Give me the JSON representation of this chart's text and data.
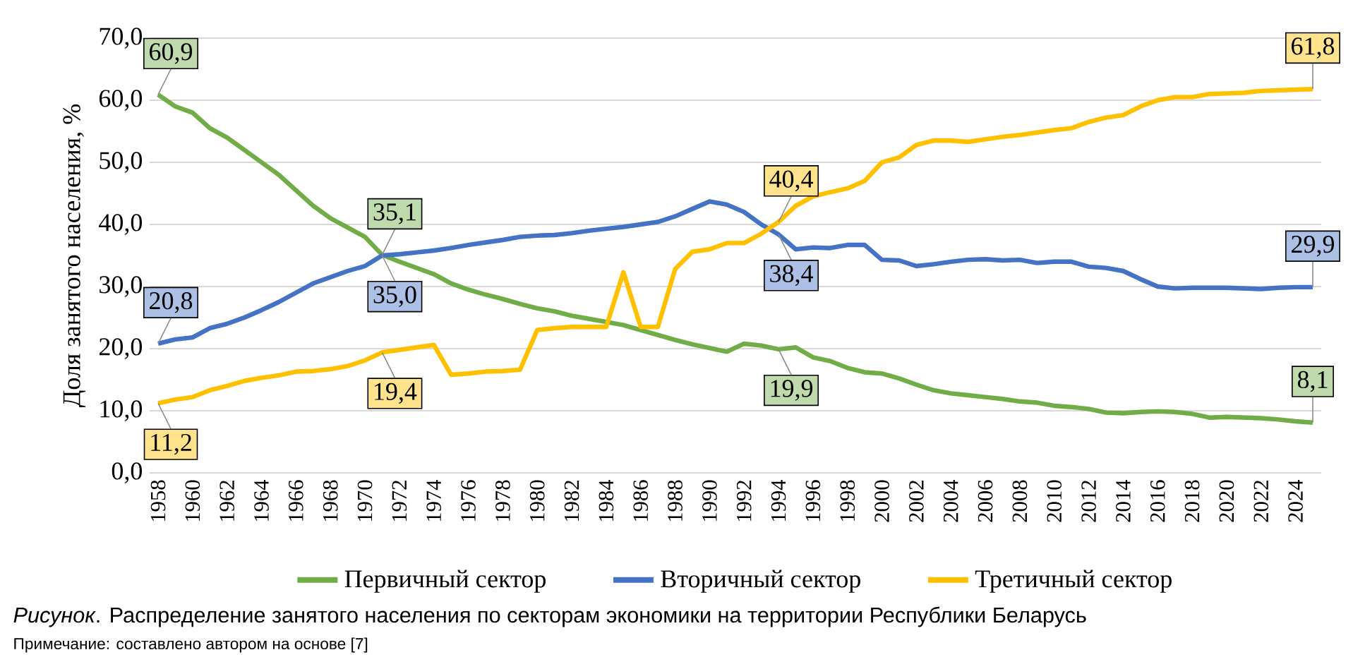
{
  "chart_data": {
    "type": "line",
    "ylabel": "Доля занятого населения, %",
    "categories": [
      "1958",
      null,
      "1960",
      null,
      "1962",
      null,
      "1964",
      null,
      "1966",
      null,
      "1968",
      null,
      "1970",
      null,
      "1972",
      null,
      "1974",
      null,
      "1976",
      null,
      "1978",
      null,
      "1980",
      null,
      "1982",
      null,
      "1984",
      null,
      "1986",
      null,
      "1988",
      null,
      "1990",
      null,
      "1992",
      null,
      "1994",
      null,
      "1996",
      null,
      "1998",
      null,
      "2000",
      null,
      "2002",
      null,
      "2004",
      null,
      "2006",
      null,
      "2008",
      null,
      "2010",
      null,
      "2012",
      null,
      "2014",
      null,
      "2016",
      null,
      "2018",
      null,
      "2020",
      null,
      "2022",
      null,
      "2024",
      null
    ],
    "series": [
      {
        "name": "Первичный сектор",
        "color": "#70ad47",
        "values": [
          60.9,
          59,
          58,
          55.5,
          54,
          52,
          50,
          48,
          45.5,
          43,
          41,
          39.5,
          38,
          35.1,
          34,
          33,
          32,
          30.5,
          29.5,
          28.7,
          28,
          27.2,
          26.5,
          26,
          25.3,
          24.8,
          24.3,
          23.8,
          23,
          22.2,
          21.4,
          20.7,
          20.1,
          19.5,
          20.8,
          20.5,
          19.9,
          20.2,
          18.6,
          18,
          16.9,
          16.2,
          16,
          15.2,
          14.2,
          13.3,
          12.8,
          12.5,
          12.2,
          11.9,
          11.5,
          11.3,
          10.8,
          10.6,
          10.3,
          9.7,
          9.6,
          9.8,
          9.9,
          9.8,
          9.5,
          8.9,
          9,
          8.9,
          8.8,
          8.6,
          8.3,
          8.1
        ],
        "value_labels": [
          "60,9",
          null,
          null,
          null,
          null,
          null,
          null,
          null,
          null,
          null,
          null,
          null,
          null,
          "35,1",
          null,
          null,
          null,
          null,
          null,
          null,
          null,
          null,
          null,
          null,
          null,
          null,
          null,
          null,
          null,
          null,
          null,
          null,
          null,
          null,
          null,
          null,
          "19,9",
          null,
          null,
          null,
          null,
          null,
          null,
          null,
          null,
          null,
          null,
          null,
          null,
          null,
          null,
          null,
          null,
          null,
          null,
          null,
          null,
          null,
          null,
          null,
          null,
          null,
          null,
          null,
          null,
          null,
          null,
          "8,1"
        ]
      },
      {
        "name": "Вторичный сектор",
        "color": "#4472c4",
        "values": [
          20.8,
          21.5,
          21.8,
          23.3,
          24,
          25,
          26.2,
          27.5,
          29,
          30.5,
          31.5,
          32.5,
          33.3,
          35.0,
          35.2,
          35.5,
          35.8,
          36.2,
          36.7,
          37.1,
          37.5,
          38,
          38.2,
          38.3,
          38.6,
          39,
          39.3,
          39.6,
          40,
          40.4,
          41.3,
          42.5,
          43.7,
          43.2,
          42,
          40,
          38.4,
          36,
          36.3,
          36.2,
          36.7,
          36.7,
          34.3,
          34.2,
          33.3,
          33.6,
          34,
          34.3,
          34.4,
          34.2,
          34.3,
          33.8,
          34,
          34,
          33.2,
          33,
          32.5,
          31.2,
          30,
          29.7,
          29.8,
          29.8,
          29.8,
          29.7,
          29.6,
          29.8,
          29.9,
          29.9
        ],
        "value_labels": [
          "20,8",
          null,
          null,
          null,
          null,
          null,
          null,
          null,
          null,
          null,
          null,
          null,
          null,
          "35,0",
          null,
          null,
          null,
          null,
          null,
          null,
          null,
          null,
          null,
          null,
          null,
          null,
          null,
          null,
          null,
          null,
          null,
          null,
          null,
          null,
          null,
          null,
          "38,4",
          null,
          null,
          null,
          null,
          null,
          null,
          null,
          null,
          null,
          null,
          null,
          null,
          null,
          null,
          null,
          null,
          null,
          null,
          null,
          null,
          null,
          null,
          null,
          null,
          null,
          null,
          null,
          null,
          null,
          null,
          "29,9"
        ]
      },
      {
        "name": "Третичный сектор",
        "color": "#ffc000",
        "values": [
          11.2,
          11.8,
          12.2,
          13.3,
          14,
          14.8,
          15.3,
          15.7,
          16.3,
          16.4,
          16.7,
          17.2,
          18.1,
          19.4,
          19.8,
          20.2,
          20.6,
          15.8,
          16,
          16.3,
          16.4,
          16.6,
          23,
          23.3,
          23.5,
          23.5,
          23.5,
          32.3,
          23.5,
          23.5,
          32.8,
          35.6,
          36,
          37,
          37,
          38.5,
          40.4,
          43,
          44.5,
          45.2,
          45.8,
          47,
          50,
          50.8,
          52.8,
          53.5,
          53.5,
          53.3,
          53.7,
          54.1,
          54.4,
          54.8,
          55.2,
          55.5,
          56.5,
          57.2,
          57.6,
          59,
          60,
          60.5,
          60.5,
          61,
          61.1,
          61.2,
          61.5,
          61.6,
          61.7,
          61.8
        ],
        "value_labels": [
          "11,2",
          null,
          null,
          null,
          null,
          null,
          null,
          null,
          null,
          null,
          null,
          null,
          null,
          "19,4",
          null,
          null,
          null,
          null,
          null,
          null,
          null,
          null,
          null,
          null,
          null,
          null,
          null,
          null,
          null,
          null,
          null,
          null,
          null,
          null,
          null,
          null,
          "40,4",
          null,
          null,
          null,
          null,
          null,
          null,
          null,
          null,
          null,
          null,
          null,
          null,
          null,
          null,
          null,
          null,
          null,
          null,
          null,
          null,
          null,
          null,
          null,
          null,
          null,
          null,
          null,
          null,
          null,
          null,
          "61,8"
        ]
      }
    ],
    "ylim": [
      0,
      70
    ],
    "yticks": [
      {
        "value": 0,
        "label": "0,0"
      },
      {
        "value": 10,
        "label": "10,0"
      },
      {
        "value": 20,
        "label": "20,0"
      },
      {
        "value": 30,
        "label": "30,0"
      },
      {
        "value": 40,
        "label": "40,0"
      },
      {
        "value": 50,
        "label": "50,0"
      },
      {
        "value": 60,
        "label": "60,0"
      },
      {
        "value": 70,
        "label": "70,0"
      }
    ],
    "grid": "y",
    "legend": "bottom",
    "annotations": [
      "*Рисунок*. Распределение занятого населения по секторам экономики на территории Республики Беларусь",
      "Примечание: составлено автором на основе [7]"
    ]
  }
}
